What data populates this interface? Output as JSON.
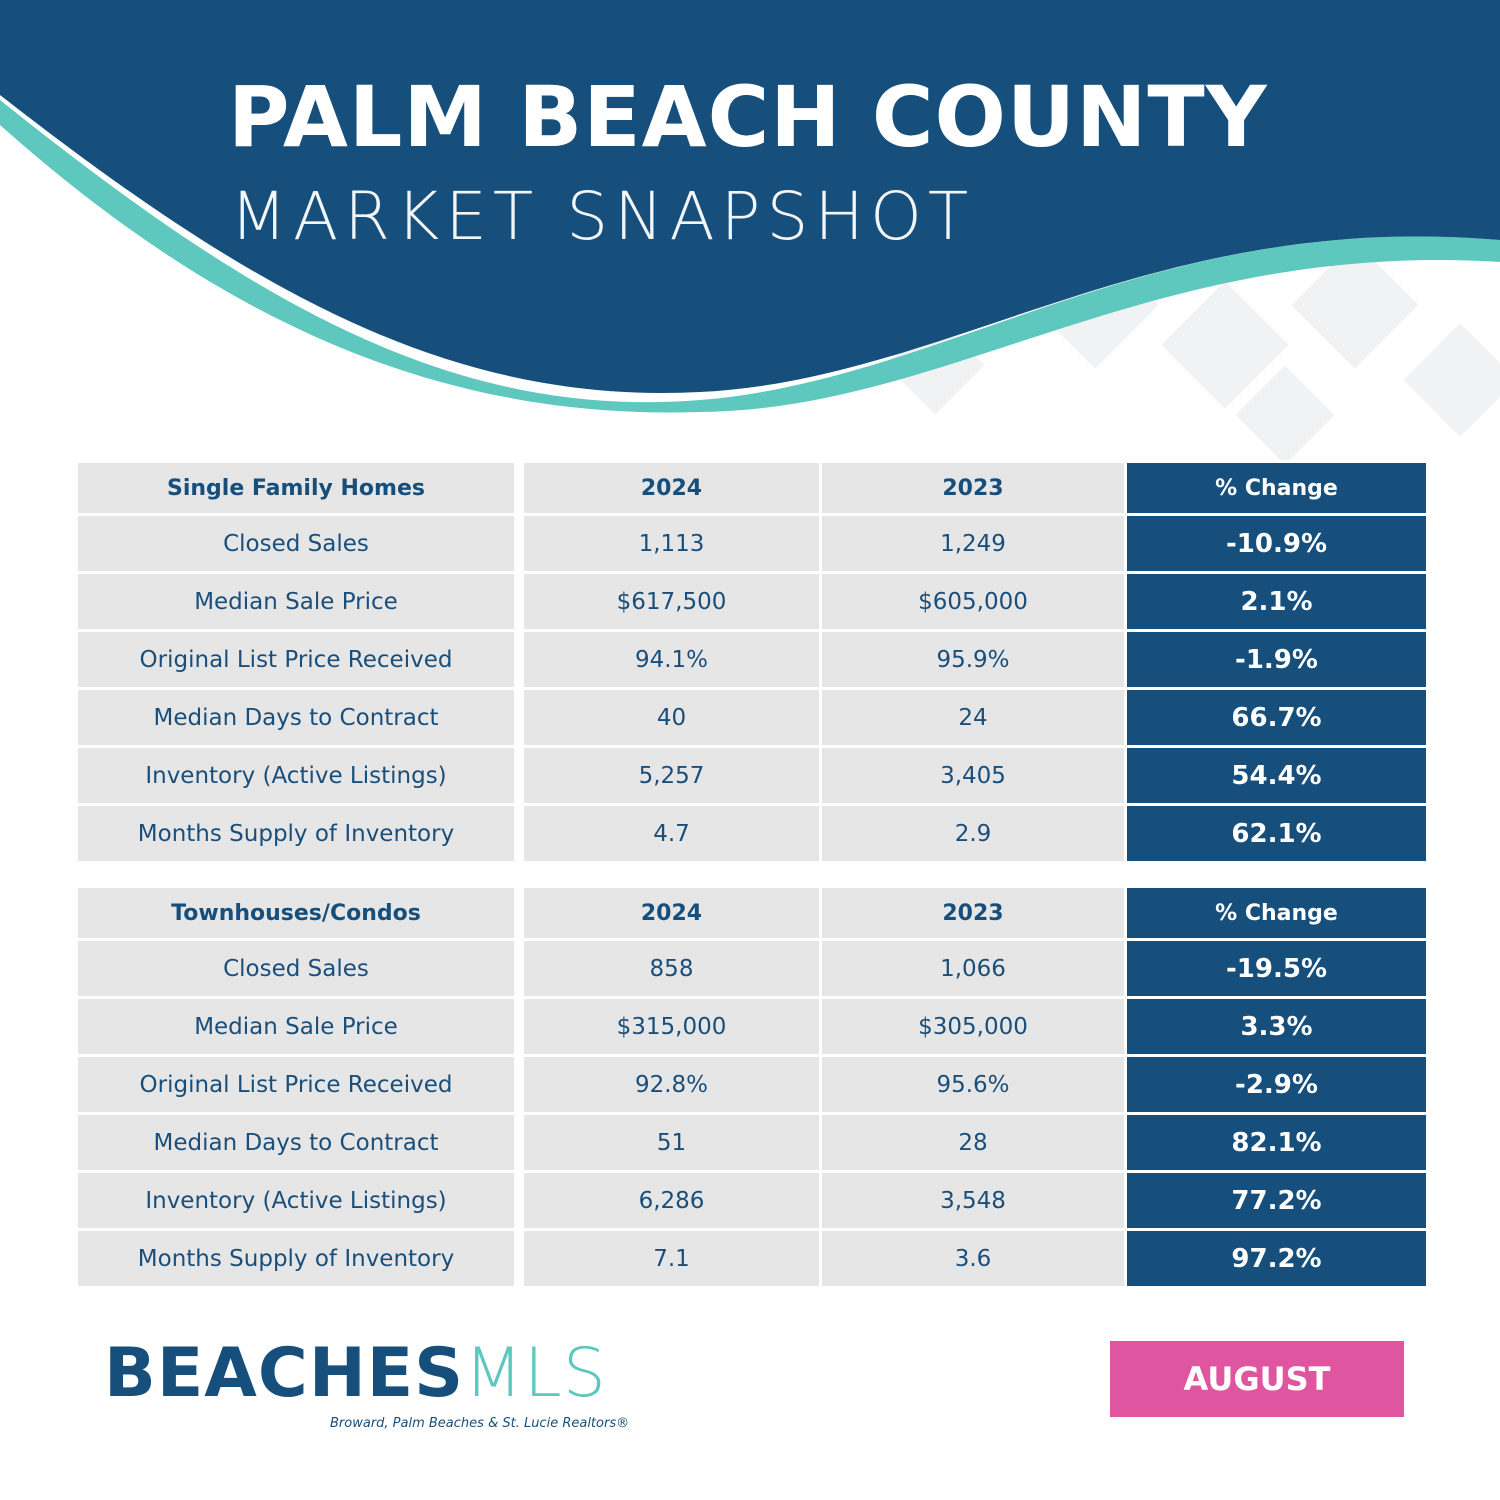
{
  "header": {
    "title": "PALM BEACH COUNTY",
    "subtitle": "MARKET SNAPSHOT"
  },
  "colors": {
    "navy": "#174f7c",
    "teal": "#5ec8be",
    "cell_gray": "#e6e6e6",
    "pink": "#e0559f"
  },
  "tables": [
    {
      "columns": [
        "Single Family Homes",
        "2024",
        "2023",
        "% Change"
      ],
      "rows": [
        [
          "Closed Sales",
          "1,113",
          "1,249",
          "-10.9%"
        ],
        [
          "Median Sale Price",
          "$617,500",
          "$605,000",
          "2.1%"
        ],
        [
          "Original List Price Received",
          "94.1%",
          "95.9%",
          "-1.9%"
        ],
        [
          "Median Days to Contract",
          "40",
          "24",
          "66.7%"
        ],
        [
          "Inventory (Active Listings)",
          "5,257",
          "3,405",
          "54.4%"
        ],
        [
          "Months Supply of Inventory",
          "4.7",
          "2.9",
          "62.1%"
        ]
      ]
    },
    {
      "columns": [
        "Townhouses/Condos",
        "2024",
        "2023",
        "% Change"
      ],
      "rows": [
        [
          "Closed Sales",
          "858",
          "1,066",
          "-19.5%"
        ],
        [
          "Median Sale Price",
          "$315,000",
          "$305,000",
          "3.3%"
        ],
        [
          "Original List Price Received",
          "92.8%",
          "95.6%",
          "-2.9%"
        ],
        [
          "Median Days to Contract",
          "51",
          "28",
          "82.1%"
        ],
        [
          "Inventory (Active Listings)",
          "6,286",
          "3,548",
          "77.2%"
        ],
        [
          "Months Supply of Inventory",
          "7.1",
          "3.6",
          "97.2%"
        ]
      ]
    }
  ],
  "footer": {
    "logo_main": "BEACHES",
    "logo_mls": "MLS",
    "logo_tagline": "Broward, Palm Beaches & St. Lucie Realtors®",
    "month": "AUGUST"
  }
}
